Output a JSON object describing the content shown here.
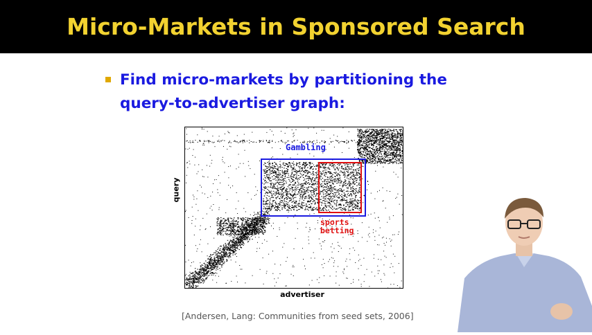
{
  "slide": {
    "title": "Micro-Markets in Sponsored Search",
    "bullet": "Find micro-markets by partitioning the query-to-advertiser graph:",
    "citation": "[Andersen, Lang: Communities from seed sets, 2006]"
  },
  "figure": {
    "y_axis_label": "query",
    "x_axis_label": "advertiser",
    "cluster_labels": {
      "gambling": "Gambling",
      "sports_betting_line1": "sports",
      "sports_betting_line2": "betting"
    }
  },
  "colors": {
    "title_bar": "#000000",
    "title_text": "#f2d230",
    "bullet_text": "#1a1ae0",
    "bullet_marker": "#e0a800",
    "gambling_box": "#1a1ae0",
    "sports_box": "#e01010",
    "shirt": "#a9b6d8"
  },
  "icons": {
    "bullet": "square-bullet"
  }
}
